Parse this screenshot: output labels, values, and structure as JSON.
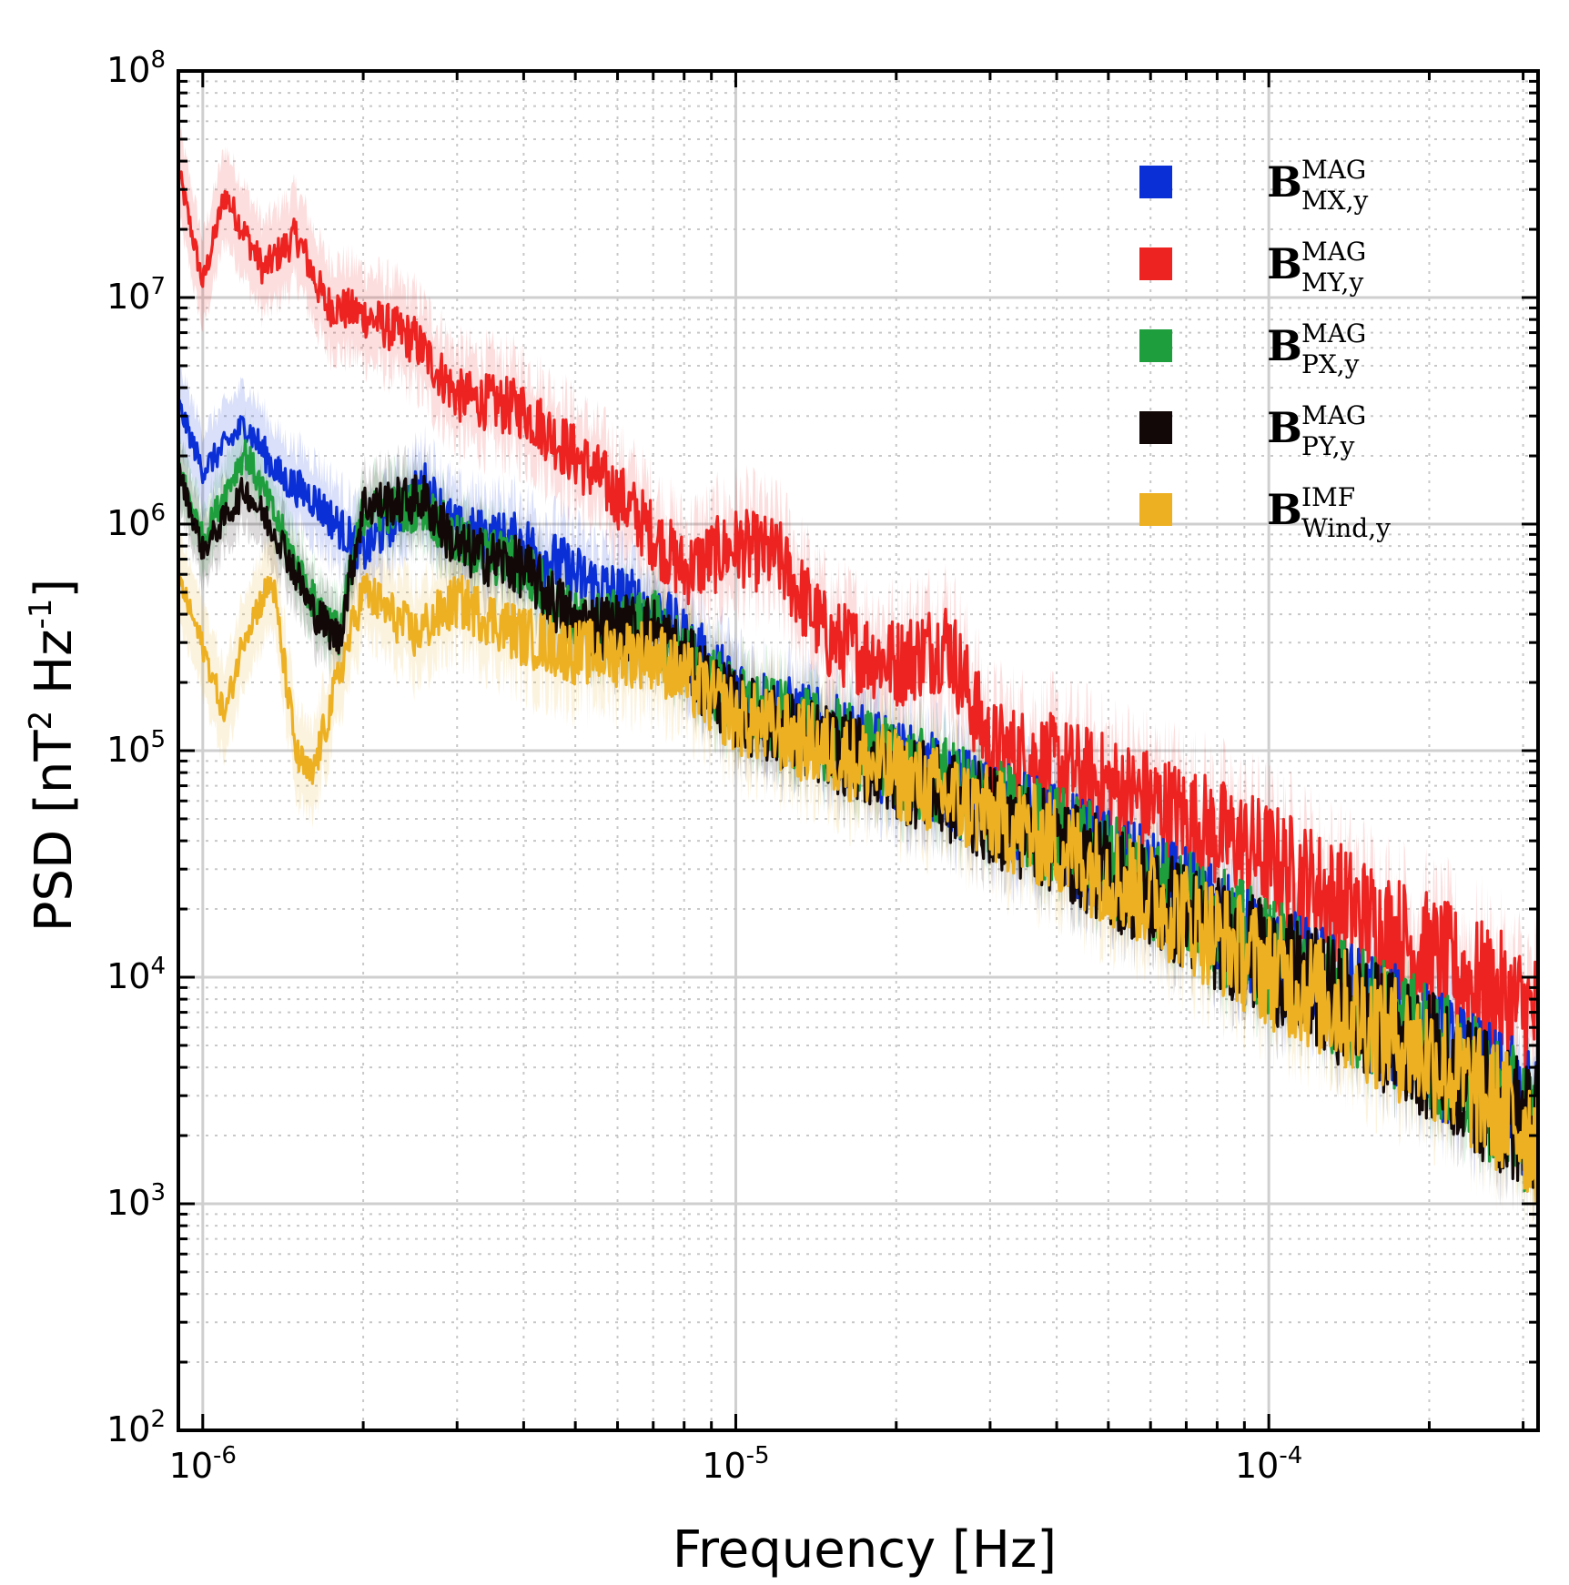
{
  "chart_data": {
    "type": "line",
    "title": "",
    "xlabel": "Frequency  [Hz]",
    "ylabel_parts": {
      "main": "PSD  [nT",
      "sq": "2",
      "mid": " Hz",
      "inv": "-1",
      "close": "]"
    },
    "xscale": "log",
    "yscale": "log",
    "xlim": [
      9e-07,
      0.00032
    ],
    "ylim": [
      100,
      100000000
    ],
    "grid": true,
    "legend_position": "top-right",
    "x_ticks": [
      {
        "value": 1e-06,
        "base": "10",
        "exp": "-6"
      },
      {
        "value": 1e-05,
        "base": "10",
        "exp": "-5"
      },
      {
        "value": 0.0001,
        "base": "10",
        "exp": "-4"
      }
    ],
    "y_ticks": [
      {
        "value": 100,
        "base": "10",
        "exp": "2"
      },
      {
        "value": 1000,
        "base": "10",
        "exp": "3"
      },
      {
        "value": 10000,
        "base": "10",
        "exp": "4"
      },
      {
        "value": 100000,
        "base": "10",
        "exp": "5"
      },
      {
        "value": 1000000,
        "base": "10",
        "exp": "6"
      },
      {
        "value": 10000000,
        "base": "10",
        "exp": "7"
      },
      {
        "value": 100000000,
        "base": "10",
        "exp": "8"
      }
    ],
    "series": [
      {
        "name": "B_MX,y^MAG",
        "label_main": "B",
        "label_sup": "MAG",
        "label_sub": "MX,y",
        "color": "#0a2fd6",
        "band": 0.35,
        "x": [
          9e-07,
          1e-06,
          1.2e-06,
          1.4e-06,
          1.6e-06,
          2e-06,
          2.6e-06,
          3e-06,
          4e-06,
          5e-06,
          7e-06,
          1e-05,
          2e-05,
          4e-05,
          7e-05,
          0.0001,
          0.0002,
          0.00032
        ],
        "y": [
          3500000,
          1800000,
          2900000,
          1700000,
          1400000,
          800000,
          1600000,
          1000000,
          900000,
          650000,
          450000,
          200000,
          100000,
          50000,
          25000,
          15000,
          6000,
          2800
        ]
      },
      {
        "name": "B_MY,y^MAG",
        "label_main": "B",
        "label_sup": "MAG",
        "label_sub": "MY,y",
        "color": "#ec2320",
        "band": 0.4,
        "x": [
          9e-07,
          1e-06,
          1.1e-06,
          1.3e-06,
          1.5e-06,
          1.7e-06,
          2e-06,
          2.5e-06,
          3e-06,
          4e-06,
          5e-06,
          6e-06,
          8e-06,
          1e-05,
          1.2e-05,
          1.5e-05,
          2e-05,
          2.5e-05,
          3e-05,
          4e-05,
          6e-05,
          0.0001,
          0.0002,
          0.00032
        ],
        "y": [
          38000000,
          12000000,
          30000000,
          14000000,
          20000000,
          10000000,
          9000000,
          7000000,
          4000000,
          3500000,
          2200000,
          1500000,
          700000,
          900000,
          800000,
          350000,
          280000,
          350000,
          120000,
          100000,
          70000,
          40000,
          15000,
          8000
        ]
      },
      {
        "name": "B_PX,y^MAG",
        "label_main": "B",
        "label_sup": "MAG",
        "label_sub": "PX,y",
        "color": "#1e9e3c",
        "band": 0.3,
        "x": [
          9e-07,
          1e-06,
          1.2e-06,
          1.4e-06,
          1.6e-06,
          1.8e-06,
          2e-06,
          2.6e-06,
          3e-06,
          4e-06,
          5e-06,
          7e-06,
          1e-05,
          2e-05,
          4e-05,
          7e-05,
          0.0001,
          0.0002,
          0.00032
        ],
        "y": [
          1900000,
          900000,
          2200000,
          1000000,
          500000,
          350000,
          1200000,
          1300000,
          900000,
          700000,
          400000,
          400000,
          180000,
          100000,
          50000,
          25000,
          15000,
          6000,
          2500
        ]
      },
      {
        "name": "B_PY,y^MAG",
        "label_main": "B",
        "label_sup": "MAG",
        "label_sub": "PY,y",
        "color": "#130808",
        "band": 0.3,
        "x": [
          9e-07,
          1e-06,
          1.2e-06,
          1.4e-06,
          1.6e-06,
          1.8e-06,
          2e-06,
          2.6e-06,
          3e-06,
          4e-06,
          5e-06,
          7e-06,
          1e-05,
          2e-05,
          4e-05,
          7e-05,
          0.0001,
          0.0002,
          0.00032
        ],
        "y": [
          1800000,
          800000,
          1500000,
          900000,
          450000,
          330000,
          1300000,
          1400000,
          850000,
          700000,
          400000,
          380000,
          170000,
          90000,
          45000,
          22000,
          14000,
          5500,
          2500
        ]
      },
      {
        "name": "B_Wind,y^IMF",
        "label_main": "B",
        "label_sup": "IMF",
        "label_sub": "Wind,y",
        "color": "#ecb022",
        "band": 0.4,
        "x": [
          9e-07,
          1e-06,
          1.1e-06,
          1.2e-06,
          1.35e-06,
          1.5e-06,
          1.6e-06,
          1.8e-06,
          2e-06,
          2.5e-06,
          3e-06,
          4e-06,
          5e-06,
          7e-06,
          1e-05,
          2e-05,
          4e-05,
          7e-05,
          0.0001,
          0.0002,
          0.00032
        ],
        "y": [
          600000,
          300000,
          150000,
          350000,
          600000,
          100000,
          80000,
          230000,
          550000,
          350000,
          500000,
          350000,
          300000,
          300000,
          160000,
          90000,
          45000,
          22000,
          13000,
          5500,
          2400
        ]
      }
    ]
  }
}
